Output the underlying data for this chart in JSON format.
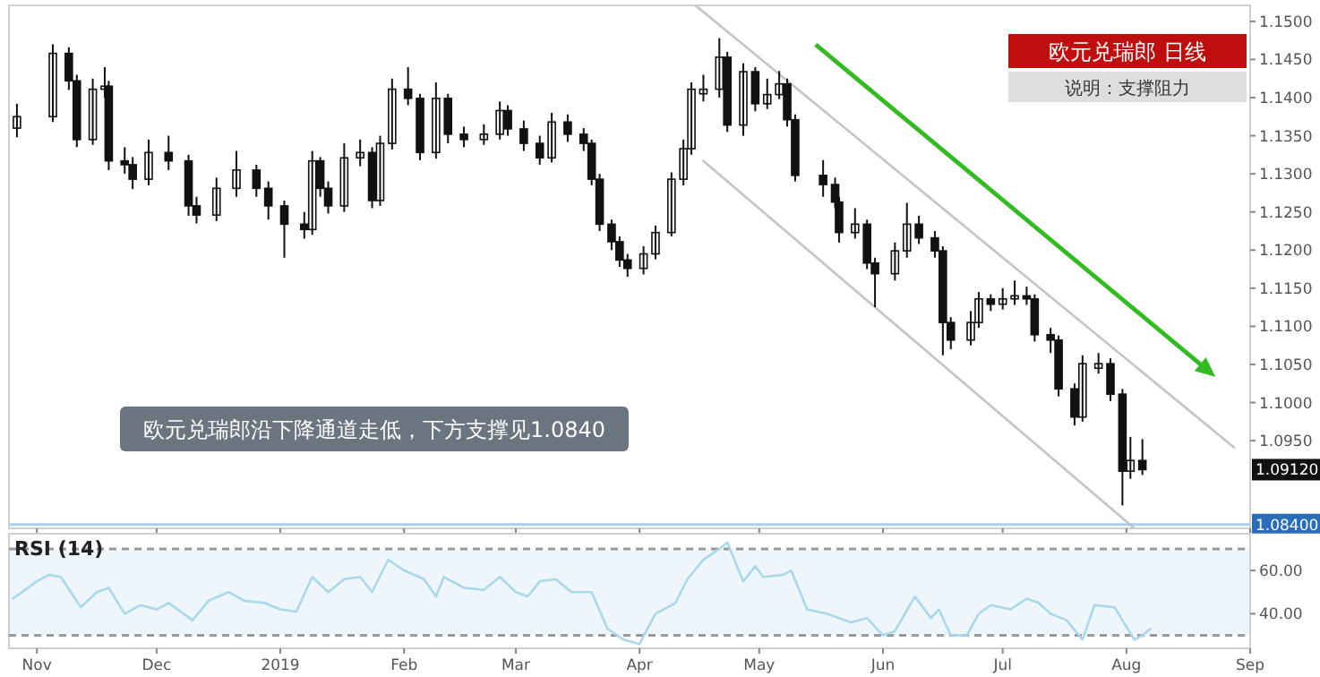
{
  "chart_data": [
    {
      "type": "candlestick",
      "title": "欧元兑瑞郎 日线",
      "subtitle": "说明：支撑阻力",
      "color": "#111111",
      "x": [
        "2018-10-27",
        "2018-11-05",
        "2018-11-09",
        "2018-11-11",
        "2018-11-15",
        "2018-11-18",
        "2018-11-19",
        "2018-11-23",
        "2018-11-25",
        "2018-11-29",
        "2018-12-04",
        "2018-12-09",
        "2018-12-11",
        "2018-12-16",
        "2018-12-21",
        "2018-12-26",
        "2018-12-29",
        "2019-01-02",
        "2019-01-07",
        "2019-01-09",
        "2019-01-11",
        "2019-01-13",
        "2019-01-17",
        "2019-01-21",
        "2019-01-24",
        "2019-01-26",
        "2019-01-29",
        "2019-02-02",
        "2019-02-05",
        "2019-02-09",
        "2019-02-12",
        "2019-02-16",
        "2019-02-21",
        "2019-02-25",
        "2019-02-27",
        "2019-03-03",
        "2019-03-07",
        "2019-03-10",
        "2019-03-14",
        "2019-03-18",
        "2019-03-20",
        "2019-03-22",
        "2019-03-25",
        "2019-03-27",
        "2019-03-29",
        "2019-04-02",
        "2019-04-05",
        "2019-04-09",
        "2019-04-12",
        "2019-04-14",
        "2019-04-17",
        "2019-04-21",
        "2019-04-23",
        "2019-04-27",
        "2019-04-30",
        "2019-05-03",
        "2019-05-06",
        "2019-05-08",
        "2019-05-10",
        "2019-05-17",
        "2019-05-20",
        "2019-05-21",
        "2019-05-25",
        "2019-05-28",
        "2019-05-30",
        "2019-06-04",
        "2019-06-07",
        "2019-06-10",
        "2019-06-14",
        "2019-06-16",
        "2019-06-18",
        "2019-06-23",
        "2019-06-25",
        "2019-06-28",
        "2019-07-01",
        "2019-07-04",
        "2019-07-07",
        "2019-07-09",
        "2019-07-13",
        "2019-07-15",
        "2019-07-19",
        "2019-07-21",
        "2019-07-25",
        "2019-07-28",
        "2019-07-31",
        "2019-08-02",
        "2019-08-05"
      ],
      "ohlc": [
        [
          1.136,
          1.1392,
          1.1348,
          1.1375
        ],
        [
          1.1375,
          1.147,
          1.1368,
          1.1458
        ],
        [
          1.1458,
          1.1466,
          1.141,
          1.1422
        ],
        [
          1.1422,
          1.143,
          1.1335,
          1.1345
        ],
        [
          1.1345,
          1.1425,
          1.1338,
          1.1411
        ],
        [
          1.1411,
          1.144,
          1.14,
          1.1415
        ],
        [
          1.1415,
          1.1422,
          1.1305,
          1.1317
        ],
        [
          1.1317,
          1.1335,
          1.13,
          1.1312
        ],
        [
          1.1312,
          1.1322,
          1.128,
          1.1293
        ],
        [
          1.1293,
          1.1345,
          1.1285,
          1.1328
        ],
        [
          1.1328,
          1.135,
          1.1305,
          1.1317
        ],
        [
          1.1317,
          1.1325,
          1.1245,
          1.1258
        ],
        [
          1.1258,
          1.127,
          1.1235,
          1.1246
        ],
        [
          1.1246,
          1.1295,
          1.1238,
          1.1281
        ],
        [
          1.1281,
          1.133,
          1.127,
          1.1305
        ],
        [
          1.1305,
          1.1312,
          1.127,
          1.1281
        ],
        [
          1.1281,
          1.129,
          1.124,
          1.1258
        ],
        [
          1.1258,
          1.1265,
          1.119,
          1.1234
        ],
        [
          1.1234,
          1.125,
          1.1215,
          1.1227
        ],
        [
          1.1227,
          1.133,
          1.122,
          1.1317
        ],
        [
          1.1317,
          1.1322,
          1.127,
          1.1281
        ],
        [
          1.1281,
          1.129,
          1.1248,
          1.1258
        ],
        [
          1.1258,
          1.134,
          1.125,
          1.1321
        ],
        [
          1.1321,
          1.1345,
          1.131,
          1.1328
        ],
        [
          1.1328,
          1.1335,
          1.1255,
          1.1265
        ],
        [
          1.1265,
          1.135,
          1.1258,
          1.134
        ],
        [
          1.134,
          1.1425,
          1.1332,
          1.1411
        ],
        [
          1.1411,
          1.144,
          1.139,
          1.1399
        ],
        [
          1.1399,
          1.1405,
          1.1318,
          1.1328
        ],
        [
          1.1328,
          1.142,
          1.132,
          1.1399
        ],
        [
          1.1399,
          1.1405,
          1.134,
          1.1352
        ],
        [
          1.1352,
          1.1362,
          1.1335,
          1.1345
        ],
        [
          1.1345,
          1.1365,
          1.1338,
          1.1352
        ],
        [
          1.1352,
          1.1395,
          1.1345,
          1.1383
        ],
        [
          1.1383,
          1.139,
          1.135,
          1.1359
        ],
        [
          1.1359,
          1.137,
          1.133,
          1.134
        ],
        [
          1.134,
          1.135,
          1.1312,
          1.1321
        ],
        [
          1.1321,
          1.138,
          1.1315,
          1.1368
        ],
        [
          1.1368,
          1.1378,
          1.1342,
          1.1352
        ],
        [
          1.1352,
          1.136,
          1.133,
          1.134
        ],
        [
          1.134,
          1.1345,
          1.1285,
          1.1293
        ],
        [
          1.1293,
          1.13,
          1.1225,
          1.1234
        ],
        [
          1.1234,
          1.124,
          1.12,
          1.1211
        ],
        [
          1.1211,
          1.1218,
          1.1178,
          1.1187
        ],
        [
          1.1187,
          1.1195,
          1.1165,
          1.1176
        ],
        [
          1.1176,
          1.1205,
          1.1168,
          1.1195
        ],
        [
          1.1195,
          1.1232,
          1.1188,
          1.1223
        ],
        [
          1.1223,
          1.1302,
          1.1218,
          1.1293
        ],
        [
          1.1293,
          1.1345,
          1.1285,
          1.1333
        ],
        [
          1.1333,
          1.142,
          1.1325,
          1.1411
        ],
        [
          1.1405,
          1.143,
          1.1395,
          1.1411
        ],
        [
          1.1411,
          1.1478,
          1.14,
          1.1453
        ],
        [
          1.1453,
          1.146,
          1.1355,
          1.1364
        ],
        [
          1.1364,
          1.1445,
          1.135,
          1.1434
        ],
        [
          1.1434,
          1.144,
          1.1382,
          1.1392
        ],
        [
          1.1392,
          1.1425,
          1.1385,
          1.1404
        ],
        [
          1.1404,
          1.1435,
          1.1398,
          1.1418
        ],
        [
          1.1418,
          1.1425,
          1.1362,
          1.1371
        ],
        [
          1.1371,
          1.1378,
          1.129,
          1.1298
        ],
        [
          1.1298,
          1.1318,
          1.127,
          1.1286
        ],
        [
          1.1286,
          1.1295,
          1.1255,
          1.1263
        ],
        [
          1.1263,
          1.127,
          1.121,
          1.1223
        ],
        [
          1.1223,
          1.1255,
          1.1215,
          1.1234
        ],
        [
          1.1234,
          1.124,
          1.1175,
          1.1183
        ],
        [
          1.1183,
          1.119,
          1.1125,
          1.1169
        ],
        [
          1.1169,
          1.121,
          1.116,
          1.1199
        ],
        [
          1.1199,
          1.1262,
          1.119,
          1.1234
        ],
        [
          1.1234,
          1.1245,
          1.1208,
          1.1216
        ],
        [
          1.1216,
          1.1225,
          1.119,
          1.1199
        ],
        [
          1.1199,
          1.1205,
          1.1062,
          1.1105
        ],
        [
          1.1105,
          1.1112,
          1.107,
          1.1082
        ],
        [
          1.1082,
          1.112,
          1.1075,
          1.1105
        ],
        [
          1.1105,
          1.1145,
          1.1098,
          1.1136
        ],
        [
          1.1136,
          1.1142,
          1.112,
          1.1129
        ],
        [
          1.1129,
          1.115,
          1.1122,
          1.1136
        ],
        [
          1.1136,
          1.116,
          1.1128,
          1.114
        ],
        [
          1.114,
          1.1152,
          1.1128,
          1.1136
        ],
        [
          1.1136,
          1.1142,
          1.108,
          1.1089
        ],
        [
          1.1089,
          1.1098,
          1.1065,
          1.1082
        ],
        [
          1.1082,
          1.1088,
          1.1008,
          1.1018
        ],
        [
          1.1018,
          1.1025,
          1.097,
          1.0981
        ],
        [
          1.0981,
          1.1062,
          1.0975,
          1.1051
        ],
        [
          1.1045,
          1.1065,
          1.1038,
          1.1051
        ],
        [
          1.1051,
          1.1058,
          1.1002,
          1.1011
        ],
        [
          1.1011,
          1.1018,
          1.0865,
          1.091
        ],
        [
          1.091,
          1.0955,
          1.09,
          1.0924
        ],
        [
          1.0924,
          1.0952,
          1.0905,
          1.0912
        ]
      ],
      "series": [
        {
          "type": "line",
          "color": "#c4c4c4",
          "x": [
            "2019-04-15",
            "2019-08-28"
          ],
          "values": [
            1.1521,
            1.0941
          ]
        },
        {
          "type": "line",
          "color": "#c4c4c4",
          "x": [
            "2019-04-17",
            "2019-08-03"
          ],
          "values": [
            1.1317,
            1.0835
          ]
        }
      ],
      "xlim": [
        "2018-10-25",
        "2019-09-01"
      ],
      "xticks": [
        {
          "value": "2018-11-01",
          "label": null
        },
        {
          "value": "2018-12-01",
          "label": null
        },
        {
          "value": "2019-01-01",
          "label": null
        },
        {
          "value": "2019-02-01",
          "label": null
        },
        {
          "value": "2019-03-01",
          "label": null
        },
        {
          "value": "2019-04-01",
          "label": null
        },
        {
          "value": "2019-05-01",
          "label": null
        },
        {
          "value": "2019-06-01",
          "label": null
        },
        {
          "value": "2019-07-01",
          "label": null
        },
        {
          "value": "2019-08-01",
          "label": null
        },
        {
          "value": "2019-09-01",
          "label": null
        }
      ],
      "ylim": [
        1.0835,
        1.1521
      ],
      "yticks": [
        {
          "value": 1.095,
          "label": "1.0950"
        },
        {
          "value": 1.1,
          "label": "1.1000"
        },
        {
          "value": 1.105,
          "label": "1.1050"
        },
        {
          "value": 1.11,
          "label": "1.1100"
        },
        {
          "value": 1.115,
          "label": "1.1150"
        },
        {
          "value": 1.12,
          "label": "1.1200"
        },
        {
          "value": 1.125,
          "label": "1.1250"
        },
        {
          "value": 1.13,
          "label": "1.1300"
        },
        {
          "value": 1.135,
          "label": "1.1350"
        },
        {
          "value": 1.14,
          "label": "1.1400"
        },
        {
          "value": 1.145,
          "label": "1.1450"
        },
        {
          "value": 1.15,
          "label": "1.1500"
        }
      ],
      "tick_labels": "y",
      "ref_lines": [
        {
          "axis": "y",
          "value": 1.084,
          "label": "1.08400",
          "color": "#a8d0f0"
        }
      ],
      "annotations": [
        "欧元兑瑞郎沿下降通道走低，下方支撑见1.0840",
        "1.09120"
      ]
    },
    {
      "type": "line",
      "title": "RSI (14)",
      "color": "#a8d8ea",
      "x": [
        "2018-10-26",
        "2018-11-01",
        "2018-11-04",
        "2018-11-07",
        "2018-11-12",
        "2018-11-16",
        "2018-11-19",
        "2018-11-23",
        "2018-11-27",
        "2018-12-01",
        "2018-12-04",
        "2018-12-10",
        "2018-12-14",
        "2018-12-19",
        "2018-12-23",
        "2018-12-28",
        "2019-01-01",
        "2019-01-05",
        "2019-01-09",
        "2019-01-13",
        "2019-01-17",
        "2019-01-21",
        "2019-01-24",
        "2019-01-28",
        "2019-02-01",
        "2019-02-06",
        "2019-02-09",
        "2019-02-11",
        "2019-02-16",
        "2019-02-21",
        "2019-02-25",
        "2019-03-01",
        "2019-03-04",
        "2019-03-07",
        "2019-03-11",
        "2019-03-15",
        "2019-03-20",
        "2019-03-24",
        "2019-03-28",
        "2019-04-01",
        "2019-04-05",
        "2019-04-10",
        "2019-04-13",
        "2019-04-17",
        "2019-04-21",
        "2019-04-23",
        "2019-04-27",
        "2019-04-30",
        "2019-05-02",
        "2019-05-07",
        "2019-05-09",
        "2019-05-13",
        "2019-05-18",
        "2019-05-24",
        "2019-05-28",
        "2019-06-01",
        "2019-06-04",
        "2019-06-09",
        "2019-06-13",
        "2019-06-15",
        "2019-06-18",
        "2019-06-22",
        "2019-06-25",
        "2019-06-28",
        "2019-07-03",
        "2019-07-07",
        "2019-07-10",
        "2019-07-13",
        "2019-07-17",
        "2019-07-21",
        "2019-07-24",
        "2019-07-29",
        "2019-08-03",
        "2019-08-05",
        "2019-08-07"
      ],
      "values": [
        47,
        55,
        58,
        57,
        43,
        50,
        52,
        40,
        44,
        42,
        45,
        37,
        46,
        50,
        46,
        45,
        42,
        41,
        57,
        50,
        56,
        57,
        50,
        65,
        60,
        56,
        48,
        57,
        52,
        51,
        57,
        50,
        48,
        55,
        56,
        50,
        50,
        33,
        28,
        26,
        40,
        45,
        56,
        65,
        70,
        73,
        55,
        62,
        57,
        58,
        60,
        42,
        40,
        36,
        38,
        30,
        32,
        48,
        38,
        42,
        30,
        30,
        40,
        44,
        42,
        47,
        45,
        40,
        37,
        28,
        44,
        43,
        28,
        30,
        33
      ],
      "xlim": [
        "2018-10-25",
        "2019-09-01"
      ],
      "xticks": [
        {
          "value": "2018-11-01",
          "label": "Nov"
        },
        {
          "value": "2018-12-01",
          "label": "Dec"
        },
        {
          "value": "2019-01-01",
          "label": "2019"
        },
        {
          "value": "2019-02-01",
          "label": "Feb"
        },
        {
          "value": "2019-03-01",
          "label": "Mar"
        },
        {
          "value": "2019-04-01",
          "label": "Apr"
        },
        {
          "value": "2019-05-01",
          "label": "May"
        },
        {
          "value": "2019-06-01",
          "label": "Jun"
        },
        {
          "value": "2019-07-01",
          "label": "Jul"
        },
        {
          "value": "2019-08-01",
          "label": "Aug"
        },
        {
          "value": "2019-09-01",
          "label": "Sep"
        }
      ],
      "ylim": [
        24,
        77
      ],
      "yticks": [
        {
          "value": 40,
          "label": "40.00"
        },
        {
          "value": 60,
          "label": "60.00"
        }
      ],
      "ref_lines": [
        {
          "axis": "y",
          "value": 70,
          "color": "#999999",
          "line_style": "dashed"
        },
        {
          "axis": "y",
          "value": 30,
          "color": "#999999",
          "line_style": "dashed"
        }
      ],
      "bands": [
        {
          "axis": "y",
          "from": 30,
          "to": 70,
          "color": "#eef6fc"
        }
      ]
    }
  ]
}
